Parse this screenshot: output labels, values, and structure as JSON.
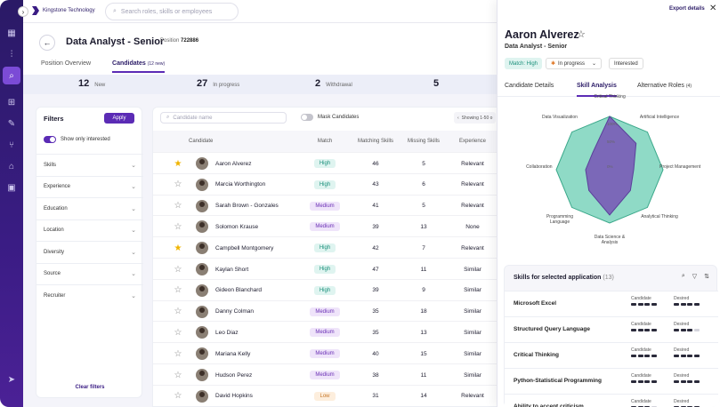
{
  "app": {
    "logo": "Kingstone Technology",
    "search_placeholder": "Search roles, skills or employees"
  },
  "job": {
    "title": "Data Analyst - Senior",
    "position_label": "Position",
    "position_id": "722886"
  },
  "tabs": [
    {
      "label": "Position Overview"
    },
    {
      "label": "Candidates",
      "count": "(12 new)"
    }
  ],
  "stats": [
    {
      "num": "12",
      "label": "New"
    },
    {
      "num": "27",
      "label": "In progress"
    },
    {
      "num": "2",
      "label": "Withdrawal"
    },
    {
      "num": "5",
      "label": ""
    }
  ],
  "filters": {
    "title": "Filters",
    "apply": "Apply",
    "toggle_label": "Show only interested",
    "items": [
      "Skills",
      "Experience",
      "Education",
      "Location",
      "Diversity",
      "Source",
      "Recruiter"
    ],
    "clear": "Clear filters"
  },
  "table": {
    "search_placeholder": "Candidate name",
    "mask_label": "Mask Candidates",
    "showing": "Showing 1-50 o",
    "headers": {
      "candidate": "Candidate",
      "match": "Match",
      "matching": "Matching Skills",
      "missing": "Missing Skills",
      "experience": "Experience"
    },
    "rows": [
      {
        "name": "Aaron Alverez",
        "match": "High",
        "matching": "46",
        "missing": "5",
        "exp": "Relevant",
        "starred": true
      },
      {
        "name": "Marcia Worthington",
        "match": "High",
        "matching": "43",
        "missing": "6",
        "exp": "Relevant",
        "starred": false
      },
      {
        "name": "Sarah Brown - Gonzales",
        "match": "Medium",
        "matching": "41",
        "missing": "5",
        "exp": "Relevant",
        "starred": false
      },
      {
        "name": "Solomon Krause",
        "match": "Medium",
        "matching": "39",
        "missing": "13",
        "exp": "None",
        "starred": false
      },
      {
        "name": "Campbell Montgomery",
        "match": "High",
        "matching": "42",
        "missing": "7",
        "exp": "Relevant",
        "starred": true
      },
      {
        "name": "Kaylan Short",
        "match": "High",
        "matching": "47",
        "missing": "11",
        "exp": "Similar",
        "starred": false
      },
      {
        "name": "Gideon Blanchard",
        "match": "High",
        "matching": "39",
        "missing": "9",
        "exp": "Similar",
        "starred": false
      },
      {
        "name": "Danny Colman",
        "match": "Medium",
        "matching": "35",
        "missing": "18",
        "exp": "Similar",
        "starred": false
      },
      {
        "name": "Leo Diaz",
        "match": "Medium",
        "matching": "35",
        "missing": "13",
        "exp": "Similar",
        "starred": false
      },
      {
        "name": "Mariana Kelly",
        "match": "Medium",
        "matching": "40",
        "missing": "15",
        "exp": "Similar",
        "starred": false
      },
      {
        "name": "Hudson Perez",
        "match": "Medium",
        "matching": "38",
        "missing": "11",
        "exp": "Similar",
        "starred": false
      },
      {
        "name": "David Hopkins",
        "match": "Low",
        "matching": "31",
        "missing": "14",
        "exp": "Relevant",
        "starred": false
      }
    ]
  },
  "panel": {
    "export": "Export details",
    "name": "Aaron Alverez",
    "role": "Data Analyst - Senior",
    "chips": {
      "match": "Match: High",
      "status": "In progress",
      "interested": "Interested"
    },
    "tabs": {
      "details": "Candidate Details",
      "skill": "Skill Analysis",
      "alt": "Alternative Roles",
      "alt_count": "(4)"
    },
    "radar": {
      "axes": [
        "Critical Thinking",
        "Artificial Intelligence",
        "Project Management",
        "Analytical Thinking",
        "Data Science & Analysis",
        "Programming Language",
        "Collaboration",
        "Data Visualization"
      ],
      "ticks": [
        "100%",
        "50%",
        "0%"
      ],
      "desired": [
        1.0,
        1.0,
        1.0,
        1.0,
        1.0,
        1.0,
        1.0,
        1.0
      ],
      "candidate": [
        1.0,
        0.7,
        0.45,
        0.55,
        0.85,
        0.55,
        0.45,
        0.45
      ]
    },
    "skills": {
      "title": "Skills for selected application",
      "count": "(13)",
      "candidate_label": "Candidate",
      "desired_label": "Desired",
      "rows": [
        {
          "name": "Microsoft Excel",
          "cand": 4,
          "des": 4
        },
        {
          "name": "Structured Query Language",
          "cand": 4,
          "des": 3
        },
        {
          "name": "Critical Thinking",
          "cand": 4,
          "des": 4
        },
        {
          "name": "Python-Statistical Programming",
          "cand": 4,
          "des": 4
        },
        {
          "name": "Ability to accept criticism",
          "cand": 3,
          "des": 4
        }
      ]
    }
  },
  "colors": {
    "brand": "#3a1c84",
    "accent": "#5b2bb5",
    "high": "#1a8f7a",
    "medium": "#6a2fb5",
    "low": "#c7772a",
    "radar_desired": "#8fdac6",
    "radar_candidate": "#7b68b8"
  }
}
